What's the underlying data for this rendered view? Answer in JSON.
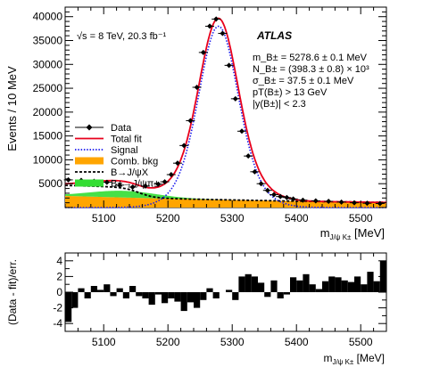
{
  "chart_data": [
    {
      "type": "line",
      "xlim": [
        5040,
        5540
      ],
      "ylim": [
        0,
        42000
      ],
      "xticks": [
        5100,
        5200,
        5300,
        5400,
        5500
      ],
      "yticks": [
        0,
        5000,
        10000,
        15000,
        20000,
        25000,
        30000,
        35000,
        40000
      ],
      "ylabel": "Events / 10 MeV",
      "xlabel": "m_J/ψ K± [MeV]",
      "energy_label": "√s = 8 TeV, 20.3 fb⁻¹",
      "experiment_label": "ATLAS",
      "fit_results": [
        "m_B± = 5278.6 ± 0.1 MeV",
        "N_B± = (398.3 ± 0.8) × 10³",
        "σ_B± = 37.5 ± 0.1 MeV",
        "pT(B±) > 13 GeV",
        "|y(B±)| < 2.3"
      ],
      "legend_position": "center-left",
      "legend": [
        {
          "label": "Data",
          "style": "data-points",
          "color": "#000000"
        },
        {
          "label": "Total fit",
          "style": "solid-line",
          "color": "#e8001c"
        },
        {
          "label": "Signal",
          "style": "dotted-line",
          "color": "#1a1aee"
        },
        {
          "label": "Comb. bkg",
          "style": "fill",
          "color": "#ffa500"
        },
        {
          "label": "B→J/ψX",
          "style": "dashed-line",
          "color": "#000000"
        },
        {
          "label": "B±→J/ψπ±",
          "style": "fill",
          "color": "#33dd33"
        }
      ],
      "series": [
        {
          "name": "Data",
          "x": [
            5045,
            5065,
            5085,
            5105,
            5125,
            5145,
            5165,
            5185,
            5195,
            5205,
            5215,
            5225,
            5235,
            5245,
            5255,
            5265,
            5275,
            5285,
            5295,
            5305,
            5315,
            5325,
            5335,
            5345,
            5355,
            5365,
            5375,
            5385,
            5395,
            5410,
            5430,
            5450,
            5470,
            5490,
            5510,
            5530
          ],
          "y": [
            5800,
            5700,
            5500,
            5300,
            4700,
            4300,
            4500,
            4900,
            5400,
            6900,
            9300,
            13000,
            18200,
            25200,
            32500,
            38000,
            39500,
            36500,
            29800,
            22800,
            16000,
            10800,
            7500,
            5000,
            3600,
            2700,
            2300,
            2100,
            1800,
            1550,
            1400,
            1300,
            1150,
            1000,
            900,
            850
          ]
        }
      ]
    },
    {
      "type": "bar",
      "xlim": [
        5040,
        5540
      ],
      "ylim": [
        -5,
        5
      ],
      "xticks": [
        5100,
        5200,
        5300,
        5400,
        5500
      ],
      "yticks": [
        -4,
        -2,
        0,
        2,
        4
      ],
      "ylabel": "(Data - fit)/err.",
      "xlabel": "m_J/ψ K± [MeV]",
      "bin_width": 10,
      "x": [
        5045,
        5055,
        5065,
        5075,
        5085,
        5095,
        5105,
        5115,
        5125,
        5135,
        5145,
        5155,
        5165,
        5175,
        5185,
        5195,
        5205,
        5215,
        5225,
        5235,
        5245,
        5255,
        5265,
        5275,
        5285,
        5295,
        5305,
        5315,
        5325,
        5335,
        5345,
        5355,
        5365,
        5375,
        5385,
        5395,
        5405,
        5415,
        5425,
        5435,
        5445,
        5455,
        5465,
        5475,
        5485,
        5495,
        5505,
        5515,
        5525,
        5535
      ],
      "values": [
        -3.8,
        -2.0,
        0.5,
        -0.8,
        0.8,
        0.3,
        1.0,
        -0.5,
        0.5,
        -0.8,
        0.8,
        -0.5,
        -0.8,
        -1.6,
        -0.3,
        -1.4,
        -0.8,
        -1.2,
        -2.4,
        -1.3,
        -2.0,
        -1.0,
        0.5,
        -0.8,
        0.0,
        0.3,
        -1.0,
        2.0,
        2.3,
        2.0,
        1.2,
        -0.6,
        1.5,
        -0.8,
        -0.3,
        1.9,
        1.5,
        2.3,
        1.0,
        0.4,
        1.4,
        2.0,
        1.9,
        1.5,
        1.3,
        2.0,
        1.0,
        2.6,
        1.4,
        4.0
      ]
    }
  ]
}
